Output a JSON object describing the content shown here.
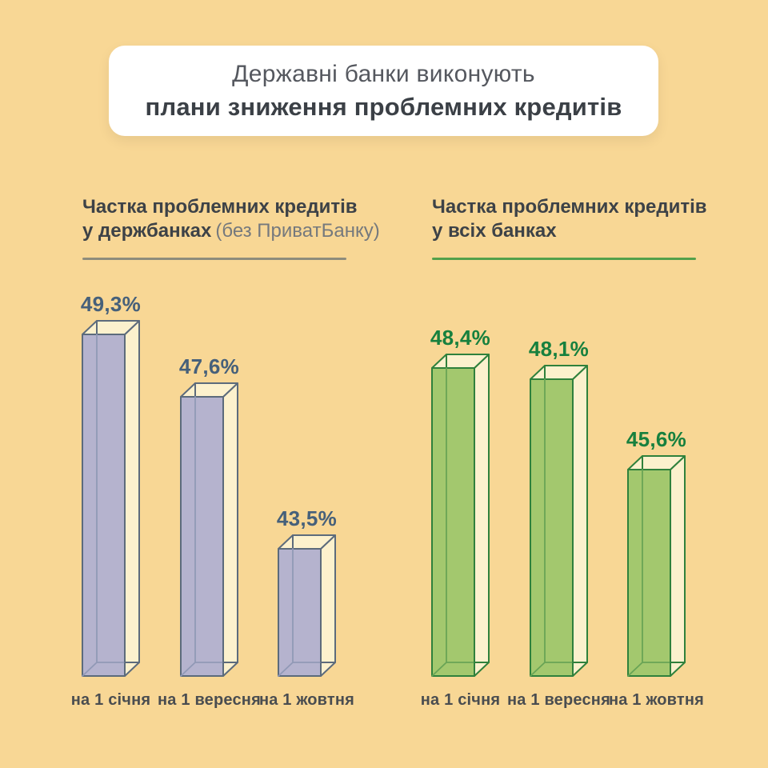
{
  "title": {
    "line1": "Державні банки виконують",
    "line2": "плани зниження проблемних кредитів"
  },
  "colors": {
    "background": "#f8d795",
    "card_background": "#ffffff",
    "title_line1": "#55585f",
    "title_line2": "#3b4046",
    "heading": "#3d4247",
    "heading_note": "#75797d",
    "category_label": "#4a4d50"
  },
  "chart_data": [
    {
      "type": "bar",
      "style": "3d-translucent-column",
      "title": "Частка проблемних кредитів у держбанках (без ПриватБанку)",
      "heading_line1": "Частка проблемних кредитів",
      "heading_line2": "у держбанках",
      "heading_note": "(без ПриватБанку)",
      "categories": [
        "на 1 січня",
        "на 1 вересня",
        "на 1 жовтня"
      ],
      "values": [
        49.3,
        47.6,
        43.5
      ],
      "value_labels": [
        "49,3%",
        "47,6%",
        "43,5%"
      ],
      "unit": "%",
      "ylim_implied": [
        40,
        50
      ],
      "grid": false,
      "legend": "none",
      "colors": {
        "front": "#b5b3ce",
        "outline": "#5c6b7c",
        "inner_edge": "#9199b6",
        "side_top_face": "#fcf1cd",
        "value_label": "#46607a",
        "rule": "#8f8d7c"
      }
    },
    {
      "type": "bar",
      "style": "3d-translucent-column",
      "title": "Частка проблемних кредитів у всіх банках",
      "heading_line1": "Частка проблемних кредитів",
      "heading_line2": "у всіх банках",
      "heading_note": "",
      "categories": [
        "на 1 січня",
        "на 1 вересня",
        "на 1 жовтня"
      ],
      "values": [
        48.4,
        48.1,
        45.6
      ],
      "value_labels": [
        "48,4%",
        "48,1%",
        "45,6%"
      ],
      "unit": "%",
      "ylim_implied": [
        40,
        50
      ],
      "grid": false,
      "legend": "none",
      "colors": {
        "front": "#a3c86e",
        "outline": "#2f813c",
        "inner_edge": "#69a455",
        "side_top_face": "#fcf1cd",
        "value_label": "#17803e",
        "rule": "#54a04b"
      }
    }
  ]
}
